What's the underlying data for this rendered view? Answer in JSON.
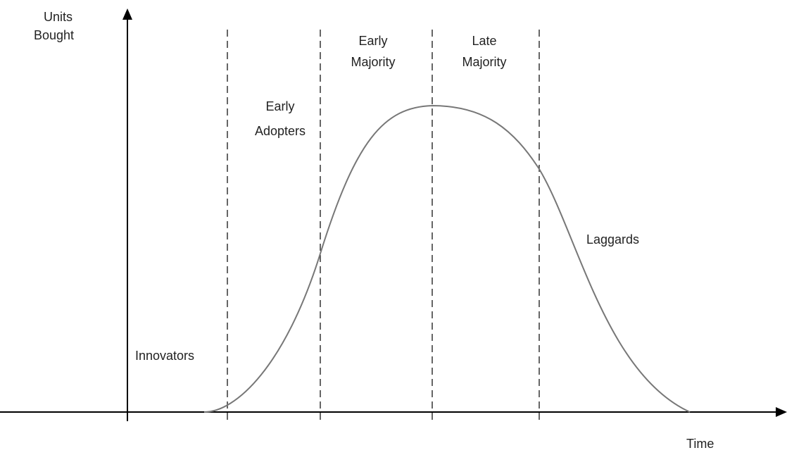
{
  "axes": {
    "y_label": [
      "Units",
      "Bought"
    ],
    "x_label": "Time"
  },
  "segments": [
    {
      "lines": [
        "Innovators"
      ]
    },
    {
      "lines": [
        "Early",
        "Adopters"
      ]
    },
    {
      "lines": [
        "Early",
        "Majority"
      ]
    },
    {
      "lines": [
        "Late",
        "Majority"
      ]
    },
    {
      "lines": [
        "Laggards"
      ]
    }
  ]
}
